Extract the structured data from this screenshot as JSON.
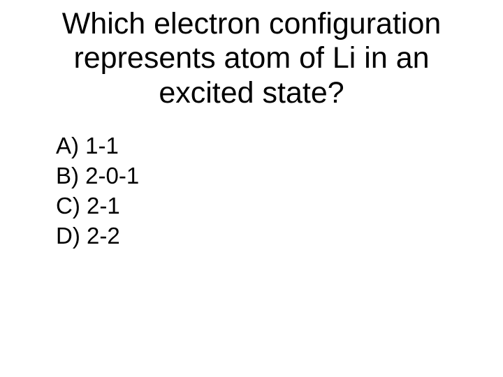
{
  "background_color": "#ffffff",
  "text_color": "#000000",
  "font_family": "Comic Sans MS",
  "title": {
    "text": "Which electron configuration represents atom of Li in an excited state?",
    "fontsize": 43,
    "align": "center"
  },
  "options": [
    {
      "label": "A) 1-1"
    },
    {
      "label": "B) 2-0-1"
    },
    {
      "label": "C) 2-1"
    },
    {
      "label": "D) 2-2"
    }
  ],
  "options_fontsize": 33
}
